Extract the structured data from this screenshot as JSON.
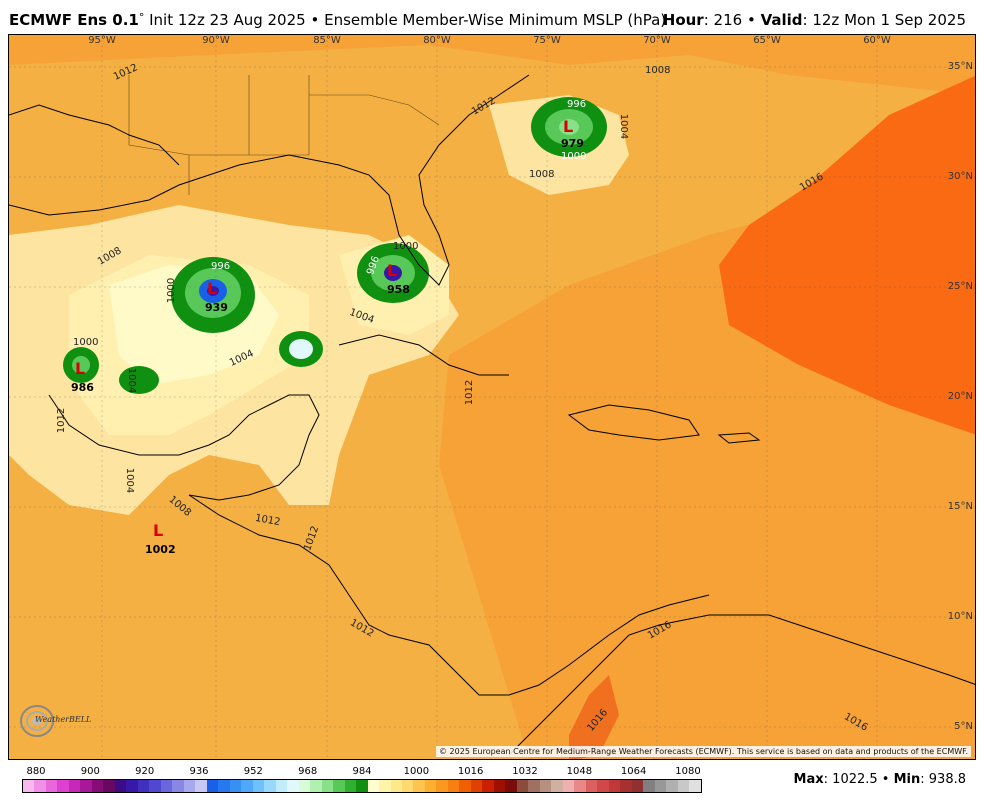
{
  "header": {
    "model": "ECMWF Ens 0.1",
    "degree": "°",
    "init": "Init 12z 23 Aug 2025",
    "bullet": "•",
    "product": "Ensemble Member-Wise Minimum MSLP (hPa)",
    "hour_label": "Hour",
    "hour_value": ": 216",
    "valid_label": "Valid",
    "valid_value": ": 12z Mon 1 Sep 2025"
  },
  "map": {
    "longitude_labels": [
      "95°W",
      "90°W",
      "85°W",
      "80°W",
      "75°W",
      "70°W",
      "65°W",
      "60°W"
    ],
    "latitude_labels": [
      "35°N",
      "30°N",
      "25°N",
      "20°N",
      "15°N",
      "10°N",
      "5°N"
    ],
    "contour_labels": [
      "1012",
      "1008",
      "1016",
      "1008",
      "1012",
      "1004",
      "996",
      "1000",
      "996",
      "1008",
      "1000",
      "1004",
      "996",
      "1004",
      "1000",
      "1004",
      "1000",
      "1012",
      "1012",
      "1004",
      "1012",
      "1016",
      "1016",
      "1016",
      "1012",
      "1012",
      "1008"
    ],
    "lows": [
      {
        "mark": "L",
        "value": "979"
      },
      {
        "mark": "L",
        "value": "939"
      },
      {
        "mark": "L",
        "value": "958"
      },
      {
        "mark": "L",
        "value": "986"
      },
      {
        "mark": "L",
        "value": "1002"
      }
    ],
    "logo_text": "WeatherBELL",
    "credit": "© 2025 European Centre for Medium-Range Weather Forecasts (ECMWF). This service is based on data and products of the ECMWF."
  },
  "colorbar": {
    "labels": [
      "880",
      "900",
      "920",
      "936",
      "952",
      "968",
      "984",
      "1000",
      "1016",
      "1032",
      "1048",
      "1064",
      "1080"
    ],
    "colors": [
      "#f8b8f0",
      "#f090e8",
      "#e868dc",
      "#e040d0",
      "#c828b8",
      "#a81898",
      "#880c78",
      "#680860",
      "#3c0c88",
      "#3818a8",
      "#4030c0",
      "#5048d0",
      "#6868dc",
      "#8888e4",
      "#a8a8ec",
      "#c8c8f4",
      "#1860e8",
      "#2878f0",
      "#3890f4",
      "#50a8f8",
      "#70c0fc",
      "#98d8fc",
      "#c0ecfc",
      "#e0f8fc",
      "#d8fcd8",
      "#b0f0b0",
      "#88e088",
      "#58c858",
      "#30b030",
      "#109010",
      "#fffcd0",
      "#fff4a8",
      "#ffe888",
      "#ffd870",
      "#ffc450",
      "#fdb030",
      "#fa9820",
      "#f88010",
      "#f06000",
      "#e04000",
      "#c82000",
      "#a01000",
      "#7c0c0c",
      "#8c4c3c",
      "#a07060",
      "#b89080",
      "#d0b0a0",
      "#f0b0b0",
      "#e88888",
      "#dc6060",
      "#d04848",
      "#c03838",
      "#a83030",
      "#903030",
      "#808080",
      "#989898",
      "#b0b0b0",
      "#c8c8c8",
      "#e0e0e0"
    ]
  },
  "stats": {
    "max_label": "Max",
    "max_value": ": 1022.5",
    "bullet": "•",
    "min_label": "Min",
    "min_value": ": 938.8"
  }
}
